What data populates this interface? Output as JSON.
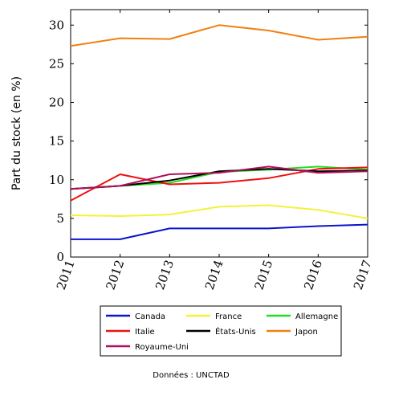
{
  "chart_data": {
    "type": "line",
    "title": "",
    "xlabel": "",
    "ylabel": "Part du stock (en %)",
    "x": [
      2011,
      2012,
      2013,
      2014,
      2015,
      2016,
      2017
    ],
    "xlim": [
      2011,
      2017
    ],
    "ylim": [
      0,
      32
    ],
    "yticks": [
      0,
      5,
      10,
      15,
      20,
      25,
      30
    ],
    "grid": false,
    "legend_position": "bottom",
    "series": [
      {
        "name": "Canada",
        "color": "#0a14cc",
        "values": [
          2.3,
          2.3,
          3.7,
          3.7,
          3.7,
          4.0,
          4.2
        ]
      },
      {
        "name": "France",
        "color": "#f2f23a",
        "values": [
          5.4,
          5.3,
          5.5,
          6.5,
          6.7,
          6.1,
          5.0
        ]
      },
      {
        "name": "Allemagne",
        "color": "#22dd22",
        "values": [
          8.8,
          9.2,
          9.6,
          11.0,
          11.3,
          11.7,
          11.3
        ]
      },
      {
        "name": "Italie",
        "color": "#ee1111",
        "values": [
          7.3,
          10.7,
          9.4,
          9.6,
          10.2,
          11.4,
          11.6
        ]
      },
      {
        "name": "États-Unis",
        "color": "#000000",
        "values": [
          8.8,
          9.2,
          9.9,
          11.1,
          11.4,
          11.1,
          11.2
        ]
      },
      {
        "name": "Japon",
        "color": "#f08010",
        "values": [
          27.3,
          28.3,
          28.2,
          30.0,
          29.3,
          28.1,
          28.5
        ]
      },
      {
        "name": "Royaume-Uni",
        "color": "#b0105a",
        "values": [
          8.8,
          9.2,
          10.7,
          10.9,
          11.7,
          10.9,
          11.1
        ]
      }
    ],
    "source": "Données : UNCTAD"
  }
}
